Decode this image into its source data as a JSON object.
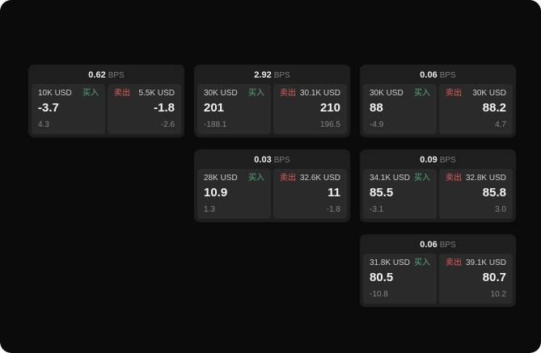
{
  "colors": {
    "buy": "#4cae74",
    "sell": "#e25d5d"
  },
  "cards": [
    {
      "col": 1,
      "row": 1,
      "bps": "0.62",
      "bps_unit": "BPS",
      "buy": {
        "amount": "10K USD",
        "tag": "买入",
        "price": "-3.7",
        "delta": "4.3"
      },
      "sell": {
        "amount": "5.5K USD",
        "tag": "卖出",
        "price": "-1.8",
        "delta": "-2.6"
      }
    },
    {
      "col": 2,
      "row": 1,
      "bps": "2.92",
      "bps_unit": "BPS",
      "buy": {
        "amount": "30K USD",
        "tag": "买入",
        "price": "201",
        "delta": "-188.1"
      },
      "sell": {
        "amount": "30.1K USD",
        "tag": "卖出",
        "price": "210",
        "delta": "196.5"
      }
    },
    {
      "col": 3,
      "row": 1,
      "bps": "0.06",
      "bps_unit": "BPS",
      "buy": {
        "amount": "30K USD",
        "tag": "买入",
        "price": "88",
        "delta": "-4.9"
      },
      "sell": {
        "amount": "30K USD",
        "tag": "卖出",
        "price": "88.2",
        "delta": "4.7"
      }
    },
    {
      "col": 2,
      "row": 2,
      "bps": "0.03",
      "bps_unit": "BPS",
      "buy": {
        "amount": "28K USD",
        "tag": "买入",
        "price": "10.9",
        "delta": "1.3"
      },
      "sell": {
        "amount": "32.6K USD",
        "tag": "卖出",
        "price": "11",
        "delta": "-1.8"
      }
    },
    {
      "col": 3,
      "row": 2,
      "bps": "0.09",
      "bps_unit": "BPS",
      "buy": {
        "amount": "34.1K USD",
        "tag": "买入",
        "price": "85.5",
        "delta": "-3.1"
      },
      "sell": {
        "amount": "32.8K USD",
        "tag": "卖出",
        "price": "85.8",
        "delta": "3.0"
      }
    },
    {
      "col": 3,
      "row": 3,
      "bps": "0.06",
      "bps_unit": "BPS",
      "buy": {
        "amount": "31.8K USD",
        "tag": "买入",
        "price": "80.5",
        "delta": "-10.8"
      },
      "sell": {
        "amount": "39.1K USD",
        "tag": "卖出",
        "price": "80.7",
        "delta": "10.2"
      }
    }
  ]
}
